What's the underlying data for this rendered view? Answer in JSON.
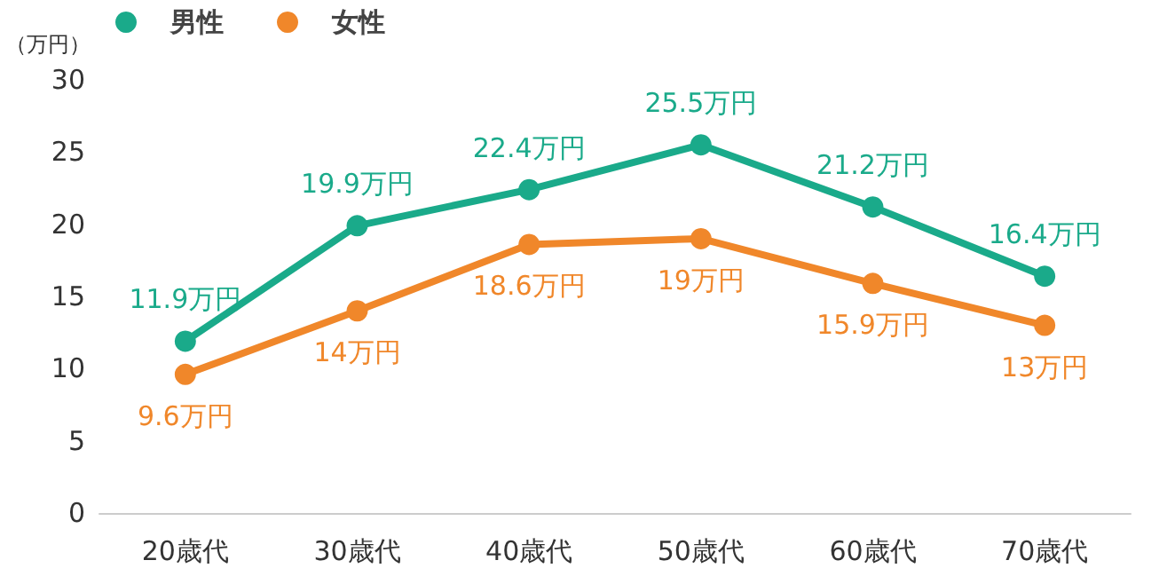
{
  "chart_data": {
    "type": "line",
    "ylabel": "（万円）",
    "categories": [
      "20歳代",
      "30歳代",
      "40歳代",
      "50歳代",
      "60歳代",
      "70歳代"
    ],
    "series": [
      {
        "name": "男性",
        "color": "#1aaa8a",
        "values": [
          11.9,
          19.9,
          22.4,
          25.5,
          21.2,
          16.4
        ],
        "value_labels": [
          "11.9万円",
          "19.9万円",
          "22.4万円",
          "25.5万円",
          "21.2万円",
          "16.4万円"
        ]
      },
      {
        "name": "女性",
        "color": "#f0872a",
        "values": [
          9.6,
          14,
          18.6,
          19,
          15.9,
          13
        ],
        "value_labels": [
          "9.6万円",
          "14万円",
          "18.6万円",
          "19万円",
          "15.9万円",
          "13万円"
        ]
      }
    ],
    "ylim": [
      0,
      30
    ],
    "yticks": [
      0,
      5,
      10,
      15,
      20,
      25,
      30
    ],
    "grid": false,
    "legend": "top left",
    "marker": "circle",
    "line_style": "solid"
  }
}
